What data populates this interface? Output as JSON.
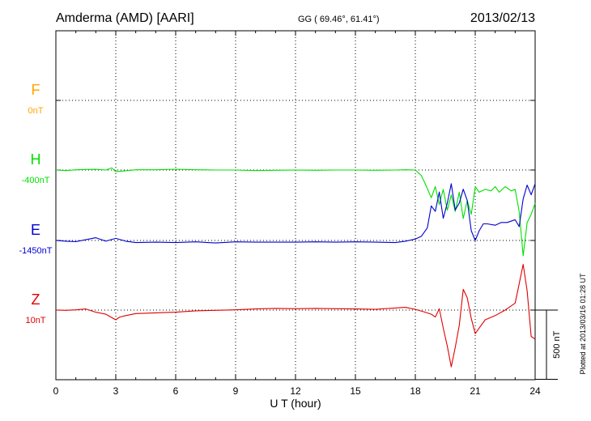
{
  "header": {
    "station": "Amderma (AMD)  [AARI]",
    "coords": "GG ( 69.46°,  61.41°)",
    "date": "2013/02/13"
  },
  "footer": {
    "plotted": "Plotted at 2013/03/16 01:28 UT"
  },
  "chart_data": {
    "type": "line",
    "xlabel": "U T (hour)",
    "ylabel": "",
    "xlim": [
      0,
      24
    ],
    "x_ticks": [
      0,
      3,
      6,
      9,
      12,
      15,
      18,
      21,
      24
    ],
    "x_tick_labels": [
      "0",
      "3",
      "6",
      "9",
      "12",
      "15",
      "18",
      "21",
      "24"
    ],
    "grid": true,
    "scale_bar": {
      "value": 500,
      "label": "500 nT"
    },
    "series": [
      {
        "name": "F",
        "baseline_label": "0nT",
        "baseline_nT": 0,
        "color": "#ffa500",
        "x": [],
        "y": []
      },
      {
        "name": "H",
        "baseline_label": "-400nT",
        "baseline_nT": -400,
        "color": "#00e000",
        "x": [
          0,
          0.5,
          1,
          1.5,
          2,
          2.5,
          2.8,
          3,
          3.5,
          4,
          5,
          6,
          7,
          8,
          9,
          10,
          11,
          12,
          13,
          14,
          15,
          16,
          17,
          17.5,
          18,
          18.3,
          18.5,
          18.8,
          19,
          19.2,
          19.4,
          19.6,
          19.8,
          20,
          20.2,
          20.4,
          20.6,
          20.8,
          21,
          21.2,
          21.5,
          21.8,
          22,
          22.2,
          22.5,
          22.8,
          23,
          23.2,
          23.4,
          23.6,
          23.8,
          24
        ],
        "y": [
          -400,
          -404,
          -398,
          -396,
          -395,
          -400,
          -385,
          -412,
          -405,
          -398,
          -398,
          -394,
          -398,
          -400,
          -400,
          -404,
          -402,
          -400,
          -402,
          -400,
          -400,
          -402,
          -400,
          -398,
          -400,
          -440,
          -500,
          -600,
          -520,
          -650,
          -540,
          -690,
          -580,
          -700,
          -560,
          -750,
          -620,
          -720,
          -520,
          -560,
          -540,
          -550,
          -520,
          -560,
          -520,
          -550,
          -540,
          -700,
          -1020,
          -780,
          -720,
          -640
        ]
      },
      {
        "name": "E",
        "baseline_label": "-1450nT",
        "baseline_nT": -1450,
        "color": "#0000d0",
        "x": [
          0,
          0.5,
          1,
          1.5,
          2,
          2.5,
          3,
          3.5,
          4,
          5,
          6,
          7,
          8,
          9,
          10,
          11,
          12,
          13,
          14,
          15,
          16,
          17,
          17.5,
          18,
          18.3,
          18.6,
          18.8,
          19,
          19.2,
          19.4,
          19.6,
          19.8,
          20,
          20.2,
          20.4,
          20.6,
          20.8,
          21,
          21.2,
          21.4,
          21.6,
          22,
          22.3,
          22.6,
          23,
          23.2,
          23.4,
          23.6,
          23.8,
          24
        ],
        "y": [
          -1450,
          -1455,
          -1458,
          -1445,
          -1430,
          -1455,
          -1435,
          -1455,
          -1465,
          -1462,
          -1465,
          -1460,
          -1468,
          -1460,
          -1462,
          -1462,
          -1462,
          -1460,
          -1462,
          -1460,
          -1462,
          -1465,
          -1455,
          -1440,
          -1420,
          -1360,
          -1200,
          -1240,
          -1100,
          -1290,
          -1180,
          -1040,
          -1230,
          -1180,
          -1080,
          -1160,
          -1380,
          -1450,
          -1380,
          -1330,
          -1330,
          -1340,
          -1320,
          -1320,
          -1300,
          -1350,
          -1150,
          -1050,
          -1120,
          -1040
        ]
      },
      {
        "name": "Z",
        "baseline_label": "10nT",
        "baseline_nT": 10,
        "color": "#e00000",
        "x": [
          0,
          0.5,
          1,
          1.5,
          2,
          2.5,
          3,
          3.2,
          3.5,
          4,
          5,
          6,
          7,
          8,
          9,
          10,
          11,
          12,
          13,
          14,
          15,
          16,
          17,
          17.5,
          18,
          18.5,
          18.8,
          19,
          19.2,
          19.4,
          19.6,
          19.8,
          20,
          20.2,
          20.4,
          20.6,
          20.8,
          21,
          21.2,
          21.5,
          22,
          22.5,
          23,
          23.2,
          23.4,
          23.6,
          23.8,
          24
        ],
        "y": [
          10,
          8,
          12,
          18,
          -5,
          -20,
          -60,
          -40,
          -30,
          -15,
          -10,
          -5,
          5,
          8,
          12,
          18,
          22,
          20,
          22,
          20,
          18,
          15,
          25,
          30,
          15,
          -5,
          -20,
          -40,
          20,
          -120,
          -250,
          -400,
          -260,
          -100,
          160,
          100,
          -50,
          -160,
          -120,
          -60,
          -30,
          10,
          60,
          200,
          340,
          150,
          -180,
          -200
        ]
      }
    ]
  }
}
